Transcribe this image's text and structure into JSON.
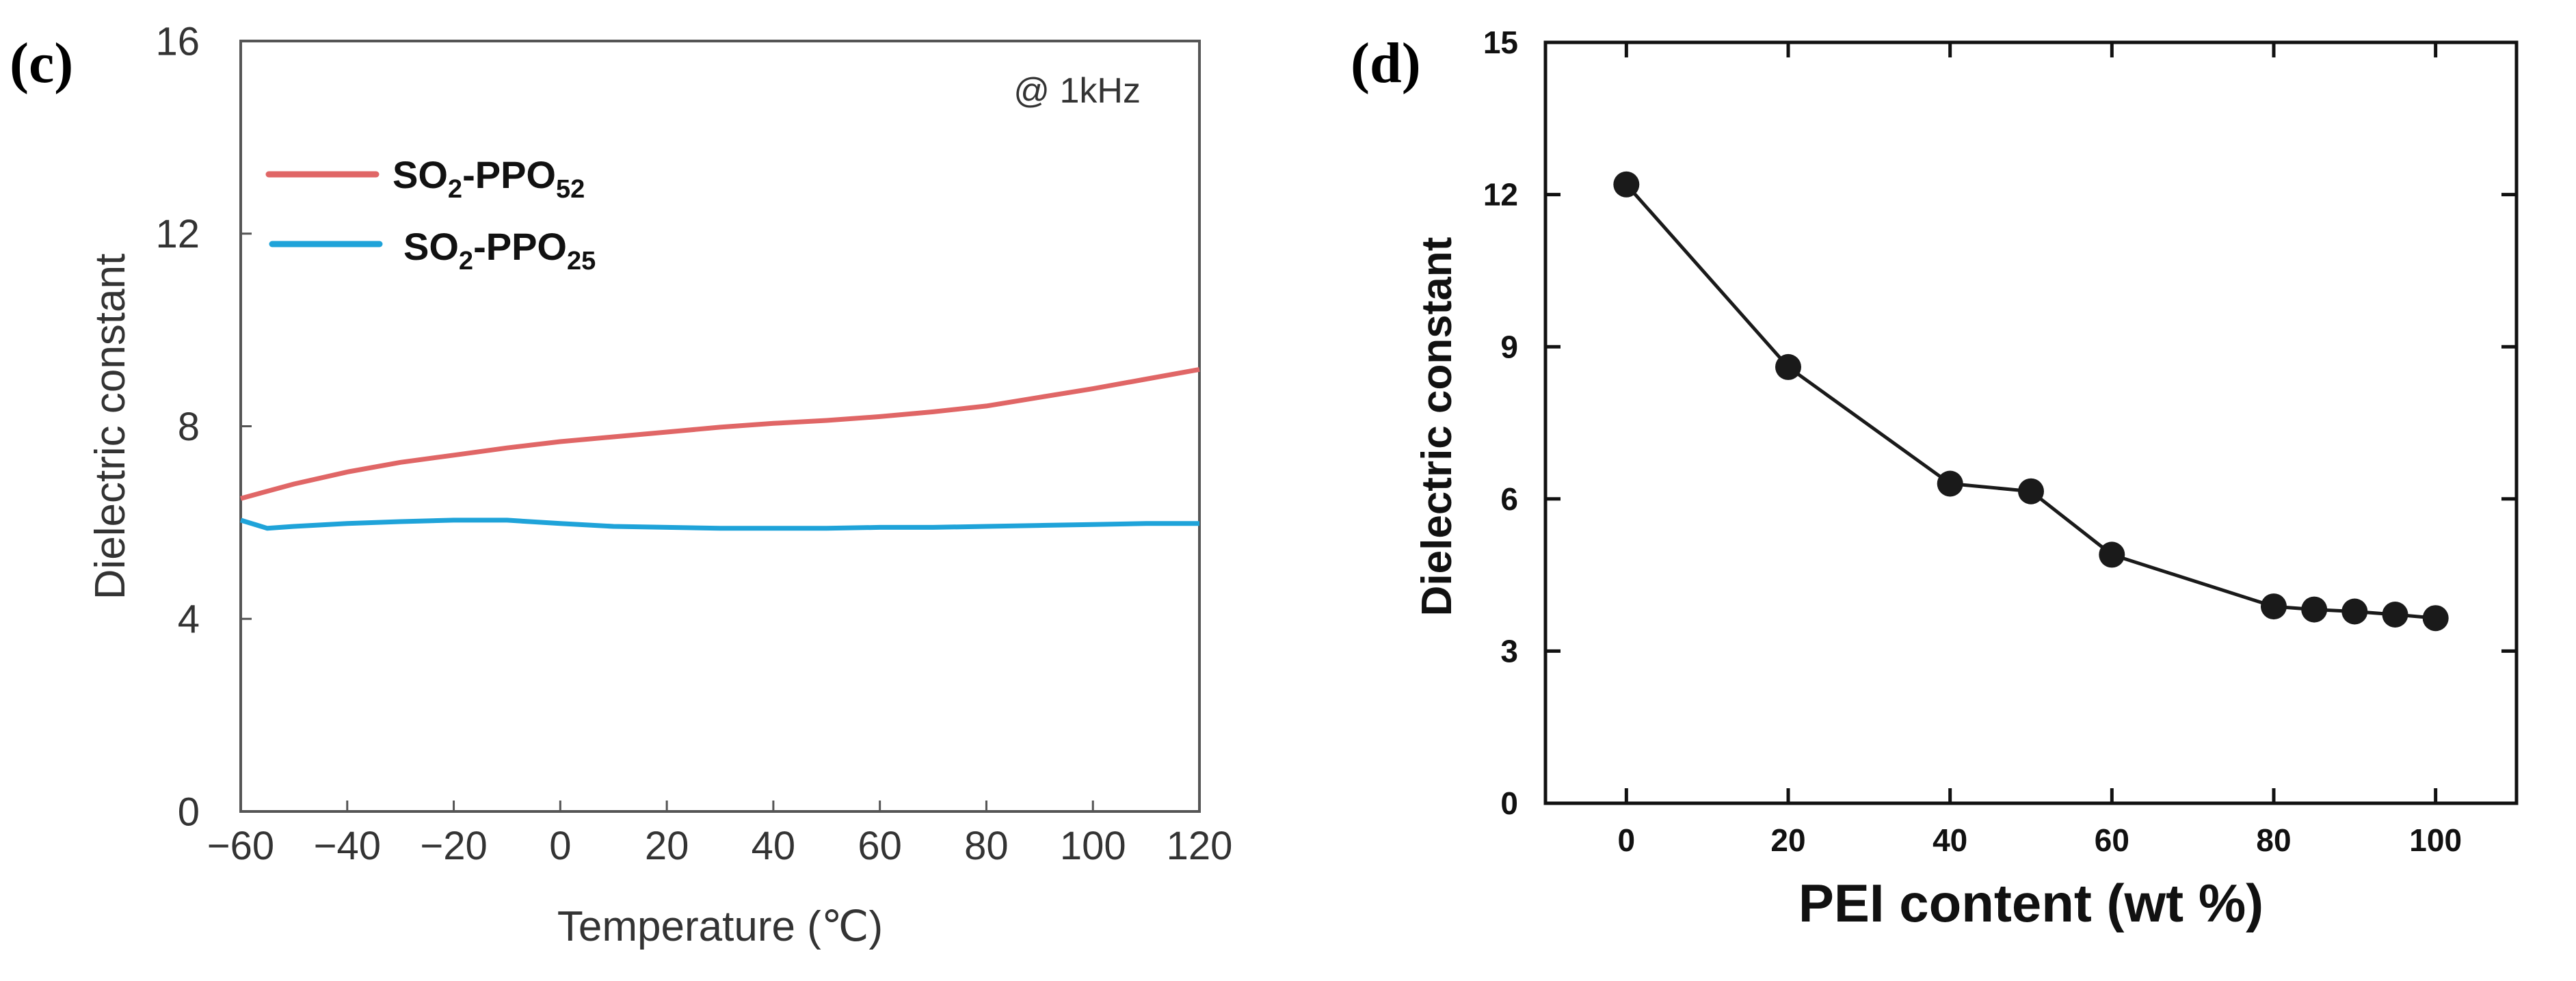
{
  "chart_data": [
    {
      "panel_label": "(c)",
      "type": "line",
      "annotation": "@ 1kHz",
      "xlabel": "Temperature (℃)",
      "ylabel": "Dielectric constant",
      "xlim": [
        -60,
        120
      ],
      "ylim": [
        0,
        16
      ],
      "x_ticks": [
        -60,
        -40,
        -20,
        0,
        20,
        40,
        60,
        80,
        100,
        120
      ],
      "y_ticks": [
        0,
        4,
        8,
        12,
        16
      ],
      "x_tick_labels": [
        "−60",
        "−40",
        "−20",
        "0",
        "20",
        "40",
        "60",
        "80",
        "100",
        "120"
      ],
      "y_tick_labels": [
        "0",
        "4",
        "8",
        "12",
        "16"
      ],
      "grid": false,
      "legend_position": "upper-left",
      "series": [
        {
          "name": "SO2-PPO52",
          "name_base": "SO",
          "name_sub1": "2",
          "name_mid": "-PPO",
          "name_sub2": "52",
          "color": "#e06666",
          "x": [
            -60,
            -50,
            -40,
            -30,
            -20,
            -10,
            0,
            10,
            20,
            30,
            40,
            50,
            60,
            70,
            80,
            90,
            100,
            110,
            120
          ],
          "y": [
            6.5,
            6.8,
            7.05,
            7.25,
            7.4,
            7.55,
            7.68,
            7.78,
            7.88,
            7.98,
            8.06,
            8.12,
            8.2,
            8.3,
            8.42,
            8.6,
            8.78,
            8.98,
            9.18
          ]
        },
        {
          "name": "SO2-PPO25",
          "name_base": "SO",
          "name_sub1": "2",
          "name_mid": "-PPO",
          "name_sub2": "25",
          "color": "#1fa3d9",
          "x": [
            -60,
            -55,
            -50,
            -40,
            -30,
            -20,
            -10,
            0,
            10,
            20,
            30,
            40,
            50,
            60,
            70,
            80,
            90,
            100,
            110,
            120
          ],
          "y": [
            6.05,
            5.88,
            5.92,
            5.98,
            6.02,
            6.05,
            6.05,
            5.98,
            5.92,
            5.9,
            5.88,
            5.88,
            5.88,
            5.9,
            5.9,
            5.92,
            5.94,
            5.96,
            5.98,
            5.98
          ]
        }
      ]
    },
    {
      "panel_label": "(d)",
      "type": "line",
      "xlabel": "PEI content (wt %)",
      "ylabel": "Dielectric constant",
      "xlim": [
        -10,
        110
      ],
      "ylim": [
        0,
        15
      ],
      "x_ticks": [
        0,
        20,
        40,
        60,
        80,
        100
      ],
      "y_ticks": [
        0,
        3,
        6,
        9,
        12,
        15
      ],
      "x_tick_labels": [
        "0",
        "20",
        "40",
        "60",
        "80",
        "100"
      ],
      "y_tick_labels": [
        "0",
        "3",
        "6",
        "9",
        "12",
        "15"
      ],
      "grid": false,
      "series": [
        {
          "color": "#1a1a1a",
          "marker": "circle",
          "x": [
            0,
            20,
            40,
            50,
            60,
            80,
            85,
            90,
            95,
            100
          ],
          "y": [
            12.2,
            8.6,
            6.3,
            6.15,
            4.9,
            3.88,
            3.82,
            3.78,
            3.72,
            3.65
          ]
        }
      ]
    }
  ]
}
